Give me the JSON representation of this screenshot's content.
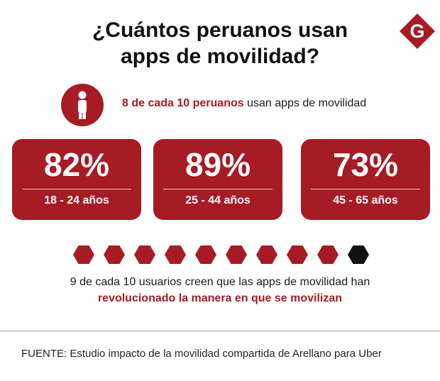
{
  "header": {
    "title_line1": "¿Cuántos peruanos usan",
    "title_line2": "apps de movilidad?",
    "logo_letter": "G",
    "logo_color": "#a61b24"
  },
  "headline_stat": {
    "icon": "person-icon",
    "highlight": "8 de cada 10 peruanos",
    "rest": " usan apps de movilidad"
  },
  "age_groups": [
    {
      "percent": "82%",
      "range": "18 - 24 años"
    },
    {
      "percent": "89%",
      "range": "25 - 44 años"
    },
    {
      "percent": "73%",
      "range": "45 - 65 años"
    }
  ],
  "hexagons": {
    "filled": 9,
    "total": 10,
    "filled_color": "#a61b24",
    "empty_color": "#111111"
  },
  "satisfaction": {
    "line1": "9 de cada 10 usuarios creen que las apps de movilidad han",
    "line2": "revolucionado la manera en que se movilizan"
  },
  "source": "FUENTE: Estudio impacto de la movilidad compartida de Arellano para Uber",
  "colors": {
    "accent": "#a61b24",
    "text": "#1a1a1a"
  }
}
